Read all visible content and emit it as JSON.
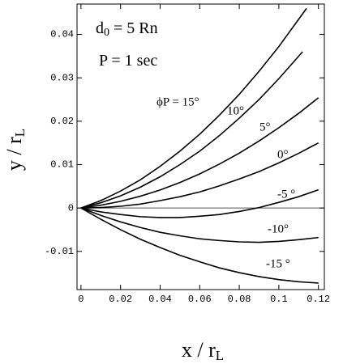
{
  "chart_data": {
    "type": "line",
    "x_label": [
      "x / r",
      "L"
    ],
    "y_label": [
      "y / r",
      "L"
    ],
    "annotations": [
      [
        "d",
        "0",
        " = 5 Rn"
      ],
      [
        "P = 1 sec"
      ]
    ],
    "xlim": [
      -0.002,
      0.123
    ],
    "ylim": [
      -0.0188,
      0.047
    ],
    "xticks": [
      0,
      0.02,
      0.04,
      0.06,
      0.08,
      0.1,
      0.12
    ],
    "yticks": [
      -0.01,
      0,
      0.01,
      0.02,
      0.03,
      0.04
    ],
    "zero_line": true,
    "color": "#000000",
    "series": [
      {
        "name": "ϕP = 15°",
        "x": [
          0,
          0.01,
          0.02,
          0.03,
          0.04,
          0.05,
          0.06,
          0.07,
          0.08,
          0.09,
          0.1,
          0.114
        ],
        "values": [
          0,
          0.0017,
          0.0039,
          0.0065,
          0.0096,
          0.0131,
          0.017,
          0.0214,
          0.0262,
          0.0315,
          0.0372,
          0.046
        ]
      },
      {
        "name": "10°",
        "x": [
          0,
          0.01,
          0.02,
          0.03,
          0.04,
          0.05,
          0.06,
          0.07,
          0.08,
          0.09,
          0.1,
          0.112
        ],
        "values": [
          0,
          0.0012,
          0.0028,
          0.0048,
          0.0072,
          0.01,
          0.0131,
          0.0167,
          0.0207,
          0.025,
          0.0298,
          0.036
        ]
      },
      {
        "name": "5°",
        "x": [
          0,
          0.01,
          0.02,
          0.03,
          0.04,
          0.05,
          0.06,
          0.07,
          0.08,
          0.09,
          0.1,
          0.11,
          0.12
        ],
        "values": [
          0,
          0.00064,
          0.00154,
          0.00272,
          0.00416,
          0.00588,
          0.00786,
          0.01012,
          0.01264,
          0.01544,
          0.0185,
          0.0218,
          0.0254
        ]
      },
      {
        "name": "0°",
        "x": [
          0,
          0.01,
          0.02,
          0.03,
          0.04,
          0.05,
          0.06,
          0.07,
          0.08,
          0.09,
          0.1,
          0.11,
          0.12
        ],
        "values": [
          0,
          0.0001,
          0.0004,
          0.0009,
          0.0017,
          0.0026,
          0.0037,
          0.0051,
          0.0067,
          0.0084,
          0.0104,
          0.0126,
          0.015
        ]
      },
      {
        "name": "-5 °",
        "x": [
          0,
          0.01,
          0.02,
          0.03,
          0.04,
          0.05,
          0.06,
          0.07,
          0.08,
          0.09,
          0.1,
          0.11,
          0.12
        ],
        "values": [
          0,
          -0.0009,
          -0.0015,
          -0.002,
          -0.0022,
          -0.0022,
          -0.0019,
          -0.0015,
          -0.0008,
          0.0001,
          0.0013,
          0.0026,
          0.0042
        ]
      },
      {
        "name": "-10°",
        "x": [
          0,
          0.01,
          0.02,
          0.03,
          0.04,
          0.05,
          0.06,
          0.07,
          0.08,
          0.09,
          0.1,
          0.11,
          0.12
        ],
        "values": [
          0,
          -0.0017,
          -0.0032,
          -0.0045,
          -0.0056,
          -0.0064,
          -0.0071,
          -0.0075,
          -0.0078,
          -0.0079,
          -0.0077,
          -0.0073,
          -0.0068
        ]
      },
      {
        "name": "-15 °",
        "x": [
          0,
          0.01,
          0.02,
          0.03,
          0.04,
          0.05,
          0.06,
          0.07,
          0.08,
          0.09,
          0.1,
          0.11,
          0.12
        ],
        "values": [
          0,
          -0.0026,
          -0.005,
          -0.0072,
          -0.0091,
          -0.0109,
          -0.0124,
          -0.0138,
          -0.0149,
          -0.0158,
          -0.0165,
          -0.017,
          -0.0173
        ]
      }
    ]
  }
}
